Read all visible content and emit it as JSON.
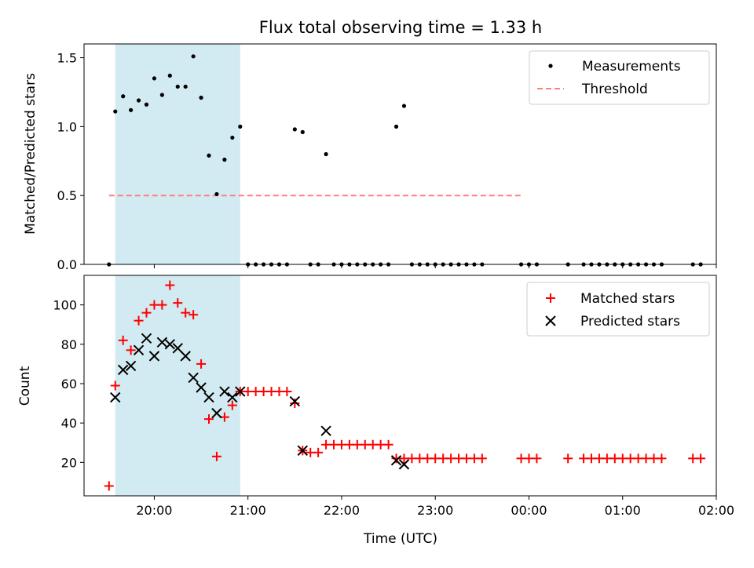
{
  "chart_data": {
    "title": "Flux total observing time = 1.33 h",
    "xlabel": "Time (UTC)",
    "x_range": [
      "19:15",
      "02:00"
    ],
    "x_tick_labels": [
      "20:00",
      "21:00",
      "22:00",
      "23:00",
      "00:00",
      "01:00",
      "02:00"
    ],
    "shaded_interval": [
      "19:35",
      "20:55"
    ],
    "shaded_color": "#add8e6",
    "panels": [
      {
        "type": "scatter",
        "ylabel": "Matched/Predicted stars",
        "ylim": [
          0,
          1.6
        ],
        "y_tick_labels": [
          "0.0",
          "0.5",
          "1.0",
          "1.5"
        ],
        "legend": "top-right",
        "threshold": {
          "name": "Threshold",
          "y": 0.5,
          "x_start": "19:31",
          "x_end": "23:55",
          "color": "#ff7f7f"
        },
        "series": [
          {
            "name": "Measurements",
            "color": "#000000",
            "points": [
              [
                "19:31",
                0
              ],
              [
                "19:35",
                1.11
              ],
              [
                "19:40",
                1.22
              ],
              [
                "19:45",
                1.12
              ],
              [
                "19:50",
                1.19
              ],
              [
                "19:55",
                1.16
              ],
              [
                "20:00",
                1.35
              ],
              [
                "20:05",
                1.23
              ],
              [
                "20:10",
                1.37
              ],
              [
                "20:15",
                1.29
              ],
              [
                "20:20",
                1.29
              ],
              [
                "20:25",
                1.51
              ],
              [
                "20:30",
                1.21
              ],
              [
                "20:35",
                0.79
              ],
              [
                "20:40",
                0.51
              ],
              [
                "20:45",
                0.76
              ],
              [
                "20:50",
                0.92
              ],
              [
                "20:55",
                1.0
              ],
              [
                "21:00",
                0
              ],
              [
                "21:05",
                0
              ],
              [
                "21:10",
                0
              ],
              [
                "21:15",
                0
              ],
              [
                "21:20",
                0
              ],
              [
                "21:25",
                0
              ],
              [
                "21:30",
                0.98
              ],
              [
                "21:35",
                0.96
              ],
              [
                "21:40",
                0
              ],
              [
                "21:45",
                0
              ],
              [
                "21:50",
                0.8
              ],
              [
                "21:55",
                0
              ],
              [
                "22:00",
                0
              ],
              [
                "22:05",
                0
              ],
              [
                "22:10",
                0
              ],
              [
                "22:15",
                0
              ],
              [
                "22:20",
                0
              ],
              [
                "22:25",
                0
              ],
              [
                "22:30",
                0
              ],
              [
                "22:35",
                1.0
              ],
              [
                "22:40",
                1.15
              ],
              [
                "22:45",
                0
              ],
              [
                "22:50",
                0
              ],
              [
                "22:55",
                0
              ],
              [
                "23:00",
                0
              ],
              [
                "23:05",
                0
              ],
              [
                "23:10",
                0
              ],
              [
                "23:15",
                0
              ],
              [
                "23:20",
                0
              ],
              [
                "23:25",
                0
              ],
              [
                "23:30",
                0
              ],
              [
                "23:55",
                0
              ],
              [
                "00:00",
                0
              ],
              [
                "00:05",
                0
              ],
              [
                "00:25",
                0
              ],
              [
                "00:35",
                0
              ],
              [
                "00:40",
                0
              ],
              [
                "00:45",
                0
              ],
              [
                "00:50",
                0
              ],
              [
                "00:55",
                0
              ],
              [
                "01:00",
                0
              ],
              [
                "01:05",
                0
              ],
              [
                "01:10",
                0
              ],
              [
                "01:15",
                0
              ],
              [
                "01:20",
                0
              ],
              [
                "01:25",
                0
              ],
              [
                "01:45",
                0
              ],
              [
                "01:50",
                0
              ]
            ]
          }
        ]
      },
      {
        "type": "scatter",
        "ylabel": "Count",
        "ylim": [
          3,
          115
        ],
        "y_tick_labels": [
          "20",
          "40",
          "60",
          "80",
          "100"
        ],
        "legend": "top-right",
        "series": [
          {
            "name": "Matched stars",
            "marker": "plus",
            "color": "#ff0000",
            "points": [
              [
                "19:31",
                8
              ],
              [
                "19:35",
                59
              ],
              [
                "19:40",
                82
              ],
              [
                "19:45",
                77
              ],
              [
                "19:50",
                92
              ],
              [
                "19:55",
                96
              ],
              [
                "20:00",
                100
              ],
              [
                "20:05",
                100
              ],
              [
                "20:10",
                110
              ],
              [
                "20:15",
                101
              ],
              [
                "20:20",
                96
              ],
              [
                "20:25",
                95
              ],
              [
                "20:30",
                70
              ],
              [
                "20:35",
                42
              ],
              [
                "20:40",
                23
              ],
              [
                "20:45",
                43
              ],
              [
                "20:50",
                49
              ],
              [
                "20:55",
                56
              ],
              [
                "21:00",
                56
              ],
              [
                "21:05",
                56
              ],
              [
                "21:10",
                56
              ],
              [
                "21:15",
                56
              ],
              [
                "21:20",
                56
              ],
              [
                "21:25",
                56
              ],
              [
                "21:30",
                50
              ],
              [
                "21:35",
                26
              ],
              [
                "21:40",
                25
              ],
              [
                "21:45",
                25
              ],
              [
                "21:50",
                29
              ],
              [
                "21:55",
                29
              ],
              [
                "22:00",
                29
              ],
              [
                "22:05",
                29
              ],
              [
                "22:10",
                29
              ],
              [
                "22:15",
                29
              ],
              [
                "22:20",
                29
              ],
              [
                "22:25",
                29
              ],
              [
                "22:30",
                29
              ],
              [
                "22:35",
                22
              ],
              [
                "22:40",
                22
              ],
              [
                "22:45",
                22
              ],
              [
                "22:50",
                22
              ],
              [
                "22:55",
                22
              ],
              [
                "23:00",
                22
              ],
              [
                "23:05",
                22
              ],
              [
                "23:10",
                22
              ],
              [
                "23:15",
                22
              ],
              [
                "23:20",
                22
              ],
              [
                "23:25",
                22
              ],
              [
                "23:30",
                22
              ],
              [
                "23:55",
                22
              ],
              [
                "00:00",
                22
              ],
              [
                "00:05",
                22
              ],
              [
                "00:25",
                22
              ],
              [
                "00:35",
                22
              ],
              [
                "00:40",
                22
              ],
              [
                "00:45",
                22
              ],
              [
                "00:50",
                22
              ],
              [
                "00:55",
                22
              ],
              [
                "01:00",
                22
              ],
              [
                "01:05",
                22
              ],
              [
                "01:10",
                22
              ],
              [
                "01:15",
                22
              ],
              [
                "01:20",
                22
              ],
              [
                "01:25",
                22
              ],
              [
                "01:45",
                22
              ],
              [
                "01:50",
                22
              ]
            ]
          },
          {
            "name": "Predicted stars",
            "marker": "x",
            "color": "#000000",
            "points": [
              [
                "19:35",
                53
              ],
              [
                "19:40",
                67
              ],
              [
                "19:45",
                69
              ],
              [
                "19:50",
                77
              ],
              [
                "19:55",
                83
              ],
              [
                "20:00",
                74
              ],
              [
                "20:05",
                81
              ],
              [
                "20:10",
                80
              ],
              [
                "20:15",
                78
              ],
              [
                "20:20",
                74
              ],
              [
                "20:25",
                63
              ],
              [
                "20:30",
                58
              ],
              [
                "20:35",
                53
              ],
              [
                "20:40",
                45
              ],
              [
                "20:45",
                56
              ],
              [
                "20:50",
                53
              ],
              [
                "20:55",
                56
              ],
              [
                "21:30",
                51
              ],
              [
                "21:35",
                26
              ],
              [
                "21:50",
                36
              ],
              [
                "22:35",
                21
              ],
              [
                "22:40",
                19
              ]
            ]
          }
        ]
      }
    ]
  }
}
